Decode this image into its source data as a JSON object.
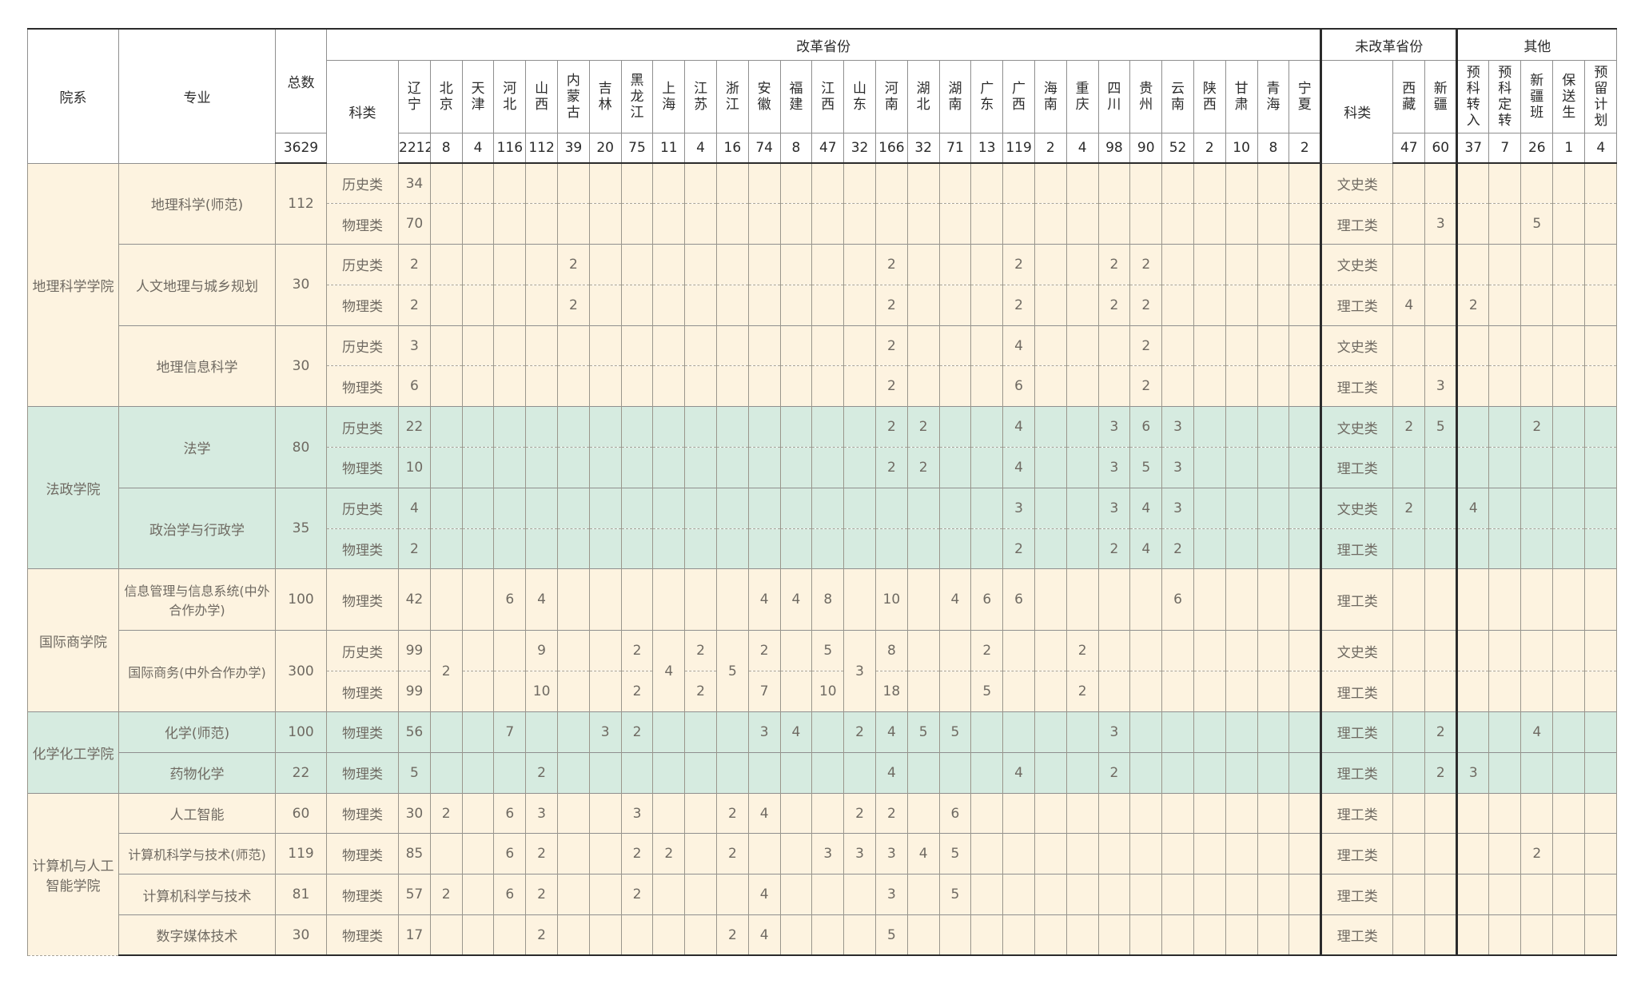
{
  "header": {
    "college": "院系",
    "major": "专业",
    "total": "总数",
    "reformed": "改革省份",
    "unreformed": "未改革省份",
    "other": "其他",
    "category": "科类",
    "category2": "科类",
    "grand_total": "3629",
    "provinces": [
      "辽宁",
      "北京",
      "天津",
      "河北",
      "山西",
      "内蒙古",
      "吉林",
      "黑龙江",
      "上海",
      "江苏",
      "浙江",
      "安徽",
      "福建",
      "江西",
      "山东",
      "河南",
      "湖北",
      "湖南",
      "广东",
      "广西",
      "海南",
      "重庆",
      "四川",
      "贵州",
      "云南",
      "陕西",
      "甘肃",
      "青海",
      "宁夏"
    ],
    "province_totals": [
      "2212",
      "8",
      "4",
      "116",
      "112",
      "39",
      "20",
      "75",
      "11",
      "4",
      "16",
      "74",
      "8",
      "47",
      "32",
      "166",
      "32",
      "71",
      "13",
      "119",
      "2",
      "4",
      "98",
      "90",
      "52",
      "2",
      "10",
      "8",
      "2"
    ],
    "unreformed_provinces": [
      "西藏",
      "新疆"
    ],
    "unreformed_totals": [
      "47",
      "60"
    ],
    "other_cols": [
      "预科转入",
      "预科定转",
      "新疆班",
      "保送生",
      "预留计划"
    ],
    "other_totals": [
      "37",
      "7",
      "26",
      "1",
      "4"
    ]
  },
  "colleges": [
    {
      "name": "地理科学学院"
    },
    {
      "name": "法政学院"
    },
    {
      "name": "国际商学院"
    },
    {
      "name": "化学化工学院"
    },
    {
      "name": "计算机与人工智能学院"
    }
  ],
  "majors": [
    {
      "name": "地理科学(师范)",
      "total": "112"
    },
    {
      "name": "人文地理与城乡规划",
      "total": "30"
    },
    {
      "name": "地理信息科学",
      "total": "30"
    },
    {
      "name": "法学",
      "total": "80"
    },
    {
      "name": "政治学与行政学",
      "total": "35"
    },
    {
      "name": "信息管理与信息系统(中外合作办学)",
      "total": "100"
    },
    {
      "name": "国际商务(中外合作办学)",
      "total": "300"
    },
    {
      "name": "化学(师范)",
      "total": "100"
    },
    {
      "name": "药物化学",
      "total": "22"
    },
    {
      "name": "人工智能",
      "total": "60"
    },
    {
      "name": "计算机科学与技术(师范)",
      "total": "119"
    },
    {
      "name": "计算机科学与技术",
      "total": "81"
    },
    {
      "name": "数字媒体技术",
      "total": "30"
    }
  ],
  "rows": [
    {
      "category": "历史类",
      "cells": [
        "34",
        "",
        "",
        "",
        "",
        "",
        "",
        "",
        "",
        "",
        "",
        "",
        "",
        "",
        "",
        "",
        "",
        "",
        "",
        "",
        "",
        "",
        "",
        "",
        "",
        "",
        "",
        "",
        ""
      ],
      "category2": "文史类",
      "unref": [
        "",
        ""
      ],
      "other": [
        "",
        "",
        "",
        "",
        ""
      ]
    },
    {
      "category": "物理类",
      "cells": [
        "70",
        "",
        "",
        "",
        "",
        "",
        "",
        "",
        "",
        "",
        "",
        "",
        "",
        "",
        "",
        "",
        "",
        "",
        "",
        "",
        "",
        "",
        "",
        "",
        "",
        "",
        "",
        "",
        ""
      ],
      "category2": "理工类",
      "unref": [
        "",
        "3"
      ],
      "other": [
        "",
        "",
        "5",
        "",
        ""
      ]
    },
    {
      "category": "历史类",
      "cells": [
        "2",
        "",
        "",
        "",
        "",
        "2",
        "",
        "",
        "",
        "",
        "",
        "",
        "",
        "",
        "",
        "2",
        "",
        "",
        "",
        "2",
        "",
        "",
        "2",
        "2",
        "",
        "",
        "",
        "",
        ""
      ],
      "category2": "文史类",
      "unref": [
        "",
        ""
      ],
      "other": [
        "",
        "",
        "",
        "",
        ""
      ]
    },
    {
      "category": "物理类",
      "cells": [
        "2",
        "",
        "",
        "",
        "",
        "2",
        "",
        "",
        "",
        "",
        "",
        "",
        "",
        "",
        "",
        "2",
        "",
        "",
        "",
        "2",
        "",
        "",
        "2",
        "2",
        "",
        "",
        "",
        "",
        ""
      ],
      "category2": "理工类",
      "unref": [
        "4",
        ""
      ],
      "other": [
        "2",
        "",
        "",
        "",
        ""
      ]
    },
    {
      "category": "历史类",
      "cells": [
        "3",
        "",
        "",
        "",
        "",
        "",
        "",
        "",
        "",
        "",
        "",
        "",
        "",
        "",
        "",
        "2",
        "",
        "",
        "",
        "4",
        "",
        "",
        "",
        "2",
        "",
        "",
        "",
        "",
        ""
      ],
      "category2": "文史类",
      "unref": [
        "",
        ""
      ],
      "other": [
        "",
        "",
        "",
        "",
        ""
      ]
    },
    {
      "category": "物理类",
      "cells": [
        "6",
        "",
        "",
        "",
        "",
        "",
        "",
        "",
        "",
        "",
        "",
        "",
        "",
        "",
        "",
        "2",
        "",
        "",
        "",
        "6",
        "",
        "",
        "",
        "2",
        "",
        "",
        "",
        "",
        ""
      ],
      "category2": "理工类",
      "unref": [
        "",
        "3"
      ],
      "other": [
        "",
        "",
        "",
        "",
        ""
      ]
    },
    {
      "category": "历史类",
      "cells": [
        "22",
        "",
        "",
        "",
        "",
        "",
        "",
        "",
        "",
        "",
        "",
        "",
        "",
        "",
        "",
        "2",
        "2",
        "",
        "",
        "4",
        "",
        "",
        "3",
        "6",
        "3",
        "",
        "",
        "",
        ""
      ],
      "category2": "文史类",
      "unref": [
        "2",
        "5"
      ],
      "other": [
        "",
        "",
        "2",
        "",
        ""
      ]
    },
    {
      "category": "物理类",
      "cells": [
        "10",
        "",
        "",
        "",
        "",
        "",
        "",
        "",
        "",
        "",
        "",
        "",
        "",
        "",
        "",
        "2",
        "2",
        "",
        "",
        "4",
        "",
        "",
        "3",
        "5",
        "3",
        "",
        "",
        "",
        ""
      ],
      "category2": "理工类",
      "unref": [
        "",
        ""
      ],
      "other": [
        "",
        "",
        "",
        "",
        ""
      ]
    },
    {
      "category": "历史类",
      "cells": [
        "4",
        "",
        "",
        "",
        "",
        "",
        "",
        "",
        "",
        "",
        "",
        "",
        "",
        "",
        "",
        "",
        "",
        "",
        "",
        "3",
        "",
        "",
        "3",
        "4",
        "3",
        "",
        "",
        "",
        ""
      ],
      "category2": "文史类",
      "unref": [
        "2",
        ""
      ],
      "other": [
        "4",
        "",
        "",
        "",
        ""
      ]
    },
    {
      "category": "物理类",
      "cells": [
        "2",
        "",
        "",
        "",
        "",
        "",
        "",
        "",
        "",
        "",
        "",
        "",
        "",
        "",
        "",
        "",
        "",
        "",
        "",
        "2",
        "",
        "",
        "2",
        "4",
        "2",
        "",
        "",
        "",
        ""
      ],
      "category2": "理工类",
      "unref": [
        "",
        ""
      ],
      "other": [
        "",
        "",
        "",
        "",
        ""
      ]
    },
    {
      "category": "物理类",
      "cells": [
        "42",
        "",
        "",
        "6",
        "4",
        "",
        "",
        "",
        "",
        "",
        "",
        "4",
        "4",
        "8",
        "",
        "10",
        "",
        "4",
        "6",
        "6",
        "",
        "",
        "",
        "",
        "6",
        "",
        "",
        "",
        ""
      ],
      "category2": "理工类",
      "unref": [
        "",
        ""
      ],
      "other": [
        "",
        "",
        "",
        "",
        ""
      ]
    },
    {
      "category": "历史类",
      "cells": [
        "99",
        "2",
        "",
        "",
        "9",
        "",
        "",
        "2",
        "4",
        "2",
        "5",
        "2",
        "",
        "5",
        "3",
        "8",
        "",
        "",
        "2",
        "",
        "",
        "2",
        "",
        "",
        "",
        "",
        "",
        "",
        ""
      ],
      "category2": "文史类",
      "unref": [
        "",
        ""
      ],
      "other": [
        "",
        "",
        "",
        "",
        ""
      ]
    },
    {
      "category": "物理类",
      "cells": [
        "99",
        "",
        "",
        "",
        "10",
        "",
        "",
        "2",
        "",
        "2",
        "",
        "7",
        "",
        "10",
        "",
        "18",
        "",
        "",
        "5",
        "",
        "",
        "2",
        "",
        "",
        "",
        "",
        "",
        "",
        ""
      ],
      "category2": "理工类",
      "unref": [
        "",
        ""
      ],
      "other": [
        "",
        "",
        "",
        "",
        ""
      ]
    },
    {
      "category": "物理类",
      "cells": [
        "56",
        "",
        "",
        "7",
        "",
        "",
        "3",
        "2",
        "",
        "",
        "",
        "3",
        "4",
        "",
        "2",
        "4",
        "5",
        "5",
        "",
        "",
        "",
        "",
        "3",
        "",
        "",
        "",
        "",
        "",
        ""
      ],
      "category2": "理工类",
      "unref": [
        "",
        "2"
      ],
      "other": [
        "",
        "",
        "4",
        "",
        ""
      ]
    },
    {
      "category": "物理类",
      "cells": [
        "5",
        "",
        "",
        "",
        "2",
        "",
        "",
        "",
        "",
        "",
        "",
        "",
        "",
        "",
        "",
        "4",
        "",
        "",
        "",
        "4",
        "",
        "",
        "2",
        "",
        "",
        "",
        "",
        "",
        ""
      ],
      "category2": "理工类",
      "unref": [
        "",
        "2"
      ],
      "other": [
        "3",
        "",
        "",
        "",
        ""
      ]
    },
    {
      "category": "物理类",
      "cells": [
        "30",
        "2",
        "",
        "6",
        "3",
        "",
        "",
        "3",
        "",
        "",
        "2",
        "4",
        "",
        "",
        "2",
        "2",
        "",
        "6",
        "",
        "",
        "",
        "",
        "",
        "",
        "",
        "",
        "",
        "",
        ""
      ],
      "category2": "理工类",
      "unref": [
        "",
        ""
      ],
      "other": [
        "",
        "",
        "",
        "",
        ""
      ]
    },
    {
      "category": "物理类",
      "cells": [
        "85",
        "",
        "",
        "6",
        "2",
        "",
        "",
        "2",
        "2",
        "",
        "2",
        "",
        "",
        "3",
        "3",
        "3",
        "4",
        "5",
        "",
        "",
        "",
        "",
        "",
        "",
        "",
        "",
        "",
        "",
        ""
      ],
      "category2": "理工类",
      "unref": [
        "",
        ""
      ],
      "other": [
        "",
        "",
        "2",
        "",
        ""
      ]
    },
    {
      "category": "物理类",
      "cells": [
        "57",
        "2",
        "",
        "6",
        "2",
        "",
        "",
        "2",
        "",
        "",
        "",
        "4",
        "",
        "",
        "",
        "3",
        "",
        "5",
        "",
        "",
        "",
        "",
        "",
        "",
        "",
        "",
        "",
        "",
        ""
      ],
      "category2": "理工类",
      "unref": [
        "",
        ""
      ],
      "other": [
        "",
        "",
        "",
        "",
        ""
      ]
    },
    {
      "category": "物理类",
      "cells": [
        "17",
        "",
        "",
        "",
        "2",
        "",
        "",
        "",
        "",
        "",
        "2",
        "4",
        "",
        "",
        "",
        "5",
        "",
        "",
        "",
        "",
        "",
        "",
        "",
        "",
        "",
        "",
        "",
        "",
        ""
      ],
      "category2": "理工类",
      "unref": [
        "",
        ""
      ],
      "other": [
        "",
        "",
        "",
        "",
        ""
      ]
    }
  ],
  "colors": {
    "cream": "#fdf3e0",
    "green": "#d6ebe0"
  }
}
